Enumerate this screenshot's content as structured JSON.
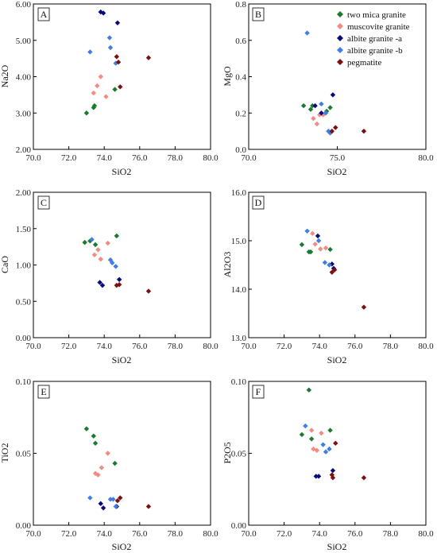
{
  "colors": {
    "two mica granite": "#1a7a2e",
    "muscovite granite": "#f28b82",
    "albite granite -a": "#0a0a7a",
    "albite granite -b": "#3f7fe0",
    "pegmatite": "#7a1010"
  },
  "legend": {
    "placement": "top-right of panel B",
    "entries": [
      "two mica granite",
      "muscovite granite",
      "albite granite -a",
      "albite granite -b",
      "pegmatite"
    ]
  },
  "chart_data": [
    {
      "type": "scatter",
      "panel": "A",
      "xlabel": "SiO2",
      "ylabel": "Na2O",
      "xlim": [
        70,
        80
      ],
      "ylim": [
        2,
        6
      ],
      "xticks": [
        "70.0",
        "72.0",
        "74.0",
        "76.0",
        "78.0",
        "80.0"
      ],
      "yticks": [
        "2.00",
        "3.00",
        "4.00",
        "5.00",
        "6.00"
      ],
      "series": [
        {
          "name": "two mica granite",
          "points": [
            [
              73.0,
              3.0
            ],
            [
              73.4,
              3.15
            ],
            [
              73.45,
              3.2
            ],
            [
              74.6,
              3.65
            ]
          ]
        },
        {
          "name": "muscovite granite",
          "points": [
            [
              73.4,
              3.55
            ],
            [
              73.6,
              3.75
            ],
            [
              73.8,
              4.0
            ],
            [
              74.1,
              3.45
            ]
          ]
        },
        {
          "name": "albite granite -a",
          "points": [
            [
              73.8,
              5.78
            ],
            [
              73.95,
              5.75
            ],
            [
              74.75,
              5.48
            ]
          ]
        },
        {
          "name": "albite granite -b",
          "points": [
            [
              73.2,
              4.68
            ],
            [
              74.3,
              5.07
            ],
            [
              74.35,
              4.8
            ],
            [
              74.65,
              4.37
            ]
          ]
        },
        {
          "name": "pegmatite",
          "points": [
            [
              74.7,
              4.55
            ],
            [
              74.8,
              4.4
            ],
            [
              74.9,
              3.72
            ],
            [
              76.5,
              4.52
            ]
          ]
        }
      ]
    },
    {
      "type": "scatter",
      "panel": "B",
      "xlabel": "SiO2",
      "ylabel": "MgO",
      "xlim": [
        70,
        80
      ],
      "ylim": [
        0,
        0.8
      ],
      "xticks": [
        "70.0",
        "75.0",
        "80.0"
      ],
      "yticks": [
        "0.0",
        "0.2",
        "0.4",
        "0.6",
        "0.8"
      ],
      "series": [
        {
          "name": "two mica granite",
          "points": [
            [
              73.1,
              0.24
            ],
            [
              73.5,
              0.22
            ],
            [
              73.6,
              0.24
            ],
            [
              74.4,
              0.21
            ],
            [
              74.6,
              0.23
            ]
          ]
        },
        {
          "name": "muscovite granite",
          "points": [
            [
              73.65,
              0.17
            ],
            [
              73.85,
              0.14
            ],
            [
              74.0,
              0.19
            ],
            [
              74.2,
              0.19
            ]
          ]
        },
        {
          "name": "albite granite -a",
          "points": [
            [
              73.75,
              0.24
            ],
            [
              74.1,
              0.2
            ],
            [
              74.75,
              0.3
            ]
          ]
        },
        {
          "name": "albite granite -b",
          "points": [
            [
              73.3,
              0.64
            ],
            [
              74.1,
              0.25
            ],
            [
              74.35,
              0.2
            ],
            [
              74.5,
              0.1
            ],
            [
              74.6,
              0.09
            ]
          ]
        },
        {
          "name": "pegmatite",
          "points": [
            [
              74.7,
              0.1
            ],
            [
              74.9,
              0.12
            ],
            [
              76.5,
              0.1
            ]
          ]
        }
      ]
    },
    {
      "type": "scatter",
      "panel": "C",
      "xlabel": "SiO2",
      "ylabel": "CaO",
      "xlim": [
        70,
        80
      ],
      "ylim": [
        0,
        2
      ],
      "xticks": [
        "70.0",
        "72.0",
        "74.0",
        "76.0",
        "78.0",
        "80.0"
      ],
      "yticks": [
        "0.00",
        "0.50",
        "1.00",
        "1.50",
        "2.00"
      ],
      "series": [
        {
          "name": "two mica granite",
          "points": [
            [
              72.9,
              1.31
            ],
            [
              73.2,
              1.33
            ],
            [
              73.5,
              1.28
            ],
            [
              74.7,
              1.4
            ]
          ]
        },
        {
          "name": "muscovite granite",
          "points": [
            [
              73.45,
              1.14
            ],
            [
              73.65,
              1.21
            ],
            [
              73.8,
              1.08
            ],
            [
              74.2,
              1.3
            ]
          ]
        },
        {
          "name": "albite granite -a",
          "points": [
            [
              73.75,
              0.76
            ],
            [
              73.9,
              0.72
            ],
            [
              74.85,
              0.8
            ]
          ]
        },
        {
          "name": "albite granite -b",
          "points": [
            [
              73.3,
              1.35
            ],
            [
              74.35,
              1.07
            ],
            [
              74.45,
              1.03
            ],
            [
              74.65,
              0.98
            ]
          ]
        },
        {
          "name": "pegmatite",
          "points": [
            [
              74.7,
              0.72
            ],
            [
              74.85,
              0.73
            ],
            [
              76.5,
              0.64
            ]
          ]
        }
      ]
    },
    {
      "type": "scatter",
      "panel": "D",
      "xlabel": "SiO2",
      "ylabel": "Al2O3",
      "xlim": [
        70,
        80
      ],
      "ylim": [
        13,
        16
      ],
      "xticks": [
        "70.0",
        "72.0",
        "74.0",
        "76.0",
        "78.0",
        "80.0"
      ],
      "yticks": [
        "13.0",
        "14.0",
        "15.0",
        "16.0"
      ],
      "series": [
        {
          "name": "two mica granite",
          "points": [
            [
              73.0,
              14.92
            ],
            [
              73.4,
              14.77
            ],
            [
              73.5,
              14.77
            ],
            [
              74.6,
              14.82
            ]
          ]
        },
        {
          "name": "muscovite granite",
          "points": [
            [
              73.6,
              15.15
            ],
            [
              73.75,
              14.93
            ],
            [
              74.05,
              14.83
            ],
            [
              74.35,
              14.85
            ]
          ]
        },
        {
          "name": "albite granite -a",
          "points": [
            [
              73.9,
              15.1
            ],
            [
              74.7,
              14.52
            ],
            [
              74.8,
              14.43
            ]
          ]
        },
        {
          "name": "albite granite -b",
          "points": [
            [
              73.3,
              15.2
            ],
            [
              73.95,
              15.0
            ],
            [
              74.3,
              14.55
            ],
            [
              74.55,
              14.5
            ]
          ]
        },
        {
          "name": "pegmatite",
          "points": [
            [
              74.7,
              14.35
            ],
            [
              74.85,
              14.4
            ],
            [
              76.5,
              13.63
            ]
          ]
        }
      ]
    },
    {
      "type": "scatter",
      "panel": "E",
      "xlabel": "SiO2",
      "ylabel": "TiO2",
      "xlim": [
        70,
        80
      ],
      "ylim": [
        0,
        0.1
      ],
      "xticks": [
        "70.0",
        "72.0",
        "74.0",
        "76.0",
        "78.0",
        "80.0"
      ],
      "yticks": [
        "0.00",
        "0.05",
        "0.10"
      ],
      "series": [
        {
          "name": "two mica granite",
          "points": [
            [
              73.0,
              0.067
            ],
            [
              73.4,
              0.062
            ],
            [
              73.5,
              0.057
            ],
            [
              74.6,
              0.043
            ]
          ]
        },
        {
          "name": "muscovite granite",
          "points": [
            [
              73.5,
              0.036
            ],
            [
              73.65,
              0.035
            ],
            [
              73.85,
              0.04
            ],
            [
              74.2,
              0.05
            ]
          ]
        },
        {
          "name": "albite granite -a",
          "points": [
            [
              73.8,
              0.015
            ],
            [
              73.95,
              0.012
            ],
            [
              74.7,
              0.013
            ]
          ]
        },
        {
          "name": "albite granite -b",
          "points": [
            [
              73.2,
              0.019
            ],
            [
              74.35,
              0.018
            ],
            [
              74.5,
              0.018
            ],
            [
              74.65,
              0.013
            ]
          ]
        },
        {
          "name": "pegmatite",
          "points": [
            [
              74.75,
              0.017
            ],
            [
              74.9,
              0.019
            ],
            [
              76.5,
              0.013
            ]
          ]
        }
      ]
    },
    {
      "type": "scatter",
      "panel": "F",
      "xlabel": "SiO2",
      "ylabel": "P2O5",
      "xlim": [
        70,
        80
      ],
      "ylim": [
        0,
        0.1
      ],
      "xticks": [
        "70.0",
        "72.0",
        "74.0",
        "76.0",
        "78.0",
        "80.0"
      ],
      "yticks": [
        "0.00",
        "0.05",
        "0.10"
      ],
      "series": [
        {
          "name": "two mica granite",
          "points": [
            [
              73.0,
              0.063
            ],
            [
              73.4,
              0.094
            ],
            [
              73.55,
              0.06
            ],
            [
              74.6,
              0.066
            ]
          ]
        },
        {
          "name": "muscovite granite",
          "points": [
            [
              73.55,
              0.066
            ],
            [
              73.65,
              0.053
            ],
            [
              73.85,
              0.052
            ],
            [
              74.1,
              0.064
            ]
          ]
        },
        {
          "name": "albite granite -a",
          "points": [
            [
              73.8,
              0.034
            ],
            [
              73.95,
              0.034
            ],
            [
              74.75,
              0.038
            ]
          ]
        },
        {
          "name": "albite granite -b",
          "points": [
            [
              73.2,
              0.069
            ],
            [
              74.2,
              0.056
            ],
            [
              74.35,
              0.051
            ],
            [
              74.55,
              0.053
            ]
          ]
        },
        {
          "name": "pegmatite",
          "points": [
            [
              74.7,
              0.035
            ],
            [
              74.75,
              0.033
            ],
            [
              74.9,
              0.057
            ],
            [
              76.5,
              0.033
            ]
          ]
        }
      ]
    }
  ]
}
